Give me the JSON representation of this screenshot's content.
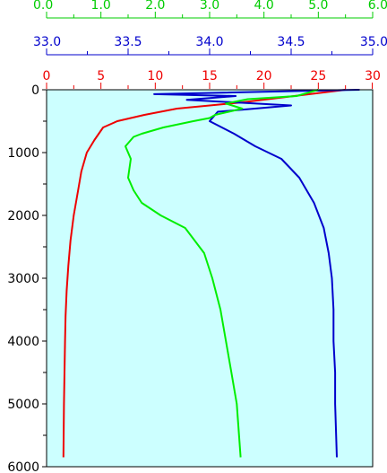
{
  "chart_data": {
    "type": "line",
    "title": "",
    "plot_background": "#ccffff",
    "y_axis": {
      "label": "",
      "ylim": [
        0,
        6000
      ],
      "inverted": true,
      "ticks": [
        0,
        1000,
        2000,
        3000,
        4000,
        5000,
        6000
      ],
      "tick_labels": [
        "0",
        "1000",
        "2000",
        "3000",
        "4000",
        "5000",
        "6000"
      ],
      "color": "#000000"
    },
    "x_axes": [
      {
        "id": "green",
        "color": "#00cc00",
        "range": [
          0.0,
          6.0
        ],
        "ticks": [
          0,
          1,
          2,
          3,
          4,
          5,
          6
        ],
        "tick_labels": [
          "0.0",
          "1.0",
          "2.0",
          "3.0",
          "4.0",
          "5.0",
          "6.0"
        ]
      },
      {
        "id": "blue",
        "color": "#0000cc",
        "range": [
          33.0,
          35.0
        ],
        "ticks": [
          33.0,
          33.5,
          34.0,
          34.5,
          35.0
        ],
        "tick_labels": [
          "33.0",
          "33.5",
          "34.0",
          "34.5",
          "35.0"
        ]
      },
      {
        "id": "red",
        "color": "#ee0000",
        "range": [
          0,
          30
        ],
        "ticks": [
          0,
          5,
          10,
          15,
          20,
          25,
          30
        ],
        "tick_labels": [
          "0",
          "5",
          "10",
          "15",
          "20",
          "25",
          "30"
        ]
      }
    ],
    "series": [
      {
        "axis": "red",
        "color": "#ee0000",
        "x": [
          27.5,
          18.0,
          12.0,
          9.0,
          6.5,
          5.2,
          4.4,
          3.7,
          3.2,
          2.9,
          2.5,
          2.2,
          2.0,
          1.85,
          1.75,
          1.7,
          1.65,
          1.6,
          1.55
        ],
        "y": [
          0,
          200,
          300,
          400,
          500,
          600,
          800,
          1000,
          1300,
          1600,
          2000,
          2400,
          2800,
          3200,
          3600,
          4000,
          4500,
          5000,
          5850
        ]
      },
      {
        "axis": "blue",
        "color": "#0000cc",
        "x": [
          34.92,
          33.66,
          34.16,
          33.86,
          34.5,
          34.05,
          34.0,
          34.15,
          34.28,
          34.44,
          34.55,
          34.64,
          34.7,
          34.73,
          34.75,
          34.76,
          34.76,
          34.77,
          34.77,
          34.78
        ],
        "y": [
          0,
          70,
          100,
          160,
          250,
          350,
          500,
          700,
          900,
          1100,
          1400,
          1800,
          2200,
          2600,
          3000,
          3500,
          4000,
          4500,
          5000,
          5850
        ]
      },
      {
        "axis": "green",
        "color": "#00ee00",
        "x": [
          5.0,
          4.6,
          3.7,
          3.3,
          3.6,
          3.1,
          3.0,
          2.7,
          2.15,
          1.75,
          1.6,
          1.45,
          1.55,
          1.5,
          1.6,
          1.75,
          2.1,
          2.55,
          2.9,
          3.05,
          3.2,
          3.3,
          3.4,
          3.5,
          3.57
        ],
        "y": [
          0,
          100,
          150,
          220,
          300,
          400,
          450,
          500,
          600,
          700,
          750,
          900,
          1100,
          1400,
          1600,
          1800,
          2000,
          2200,
          2600,
          3000,
          3500,
          4000,
          4500,
          5000,
          5850
        ]
      }
    ]
  }
}
